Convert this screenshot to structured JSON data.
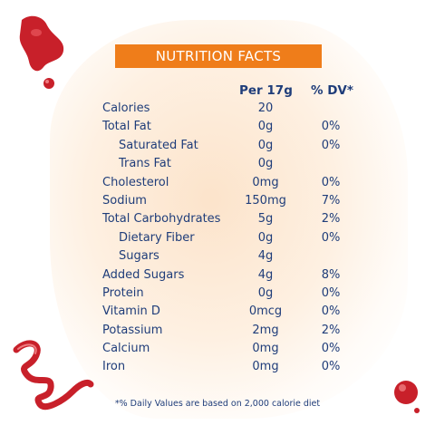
{
  "title": "NUTRITION FACTS",
  "headers": {
    "per": "Per 17g",
    "dv": "% DV*"
  },
  "rows": [
    {
      "name": "Calories",
      "amount": "20",
      "dv": "",
      "indent": false
    },
    {
      "name": "Total Fat",
      "amount": "0g",
      "dv": "0%",
      "indent": false
    },
    {
      "name": "Saturated Fat",
      "amount": "0g",
      "dv": "0%",
      "indent": true
    },
    {
      "name": "Trans Fat",
      "amount": "0g",
      "dv": "",
      "indent": true
    },
    {
      "name": "Cholesterol",
      "amount": "0mg",
      "dv": "0%",
      "indent": false
    },
    {
      "name": "Sodium",
      "amount": "150mg",
      "dv": "7%",
      "indent": false
    },
    {
      "name": "Total Carbohydrates",
      "amount": "5g",
      "dv": "2%",
      "indent": false
    },
    {
      "name": "Dietary Fiber",
      "amount": "0g",
      "dv": "0%",
      "indent": true
    },
    {
      "name": "Sugars",
      "amount": "4g",
      "dv": "",
      "indent": true
    },
    {
      "name": "Added Sugars",
      "amount": "4g",
      "dv": "8%",
      "indent": false
    },
    {
      "name": "Protein",
      "amount": "0g",
      "dv": "0%",
      "indent": false
    },
    {
      "name": "Vitamin D",
      "amount": "0mcg",
      "dv": "0%",
      "indent": false
    },
    {
      "name": "Potassium",
      "amount": "2mg",
      "dv": "2%",
      "indent": false
    },
    {
      "name": "Calcium",
      "amount": "0mg",
      "dv": "0%",
      "indent": false
    },
    {
      "name": "Iron",
      "amount": "0mg",
      "dv": "0%",
      "indent": false
    }
  ],
  "footnote": "*% Daily Values are based on 2,000 calorie diet",
  "colors": {
    "title_bg": "#ef7d1a",
    "text": "#1f3d7a",
    "sauce": "#c8202a"
  }
}
